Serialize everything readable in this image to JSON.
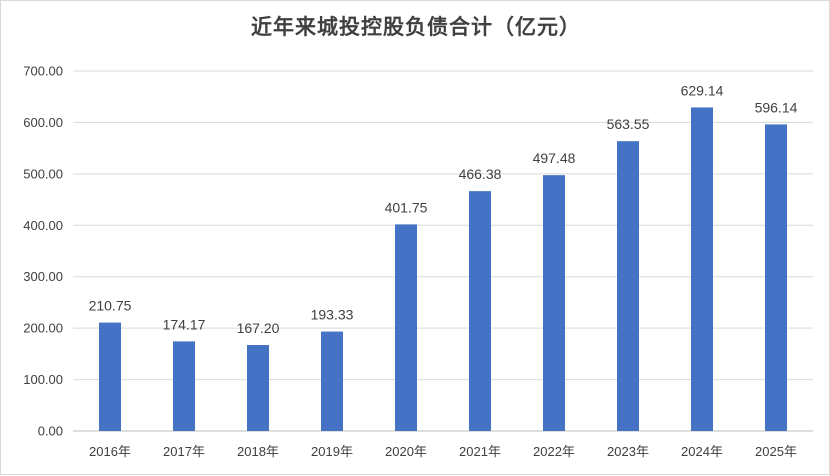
{
  "chart_data": {
    "type": "bar",
    "title": "近年来城投控股负债合计（亿元）",
    "categories": [
      "2016年",
      "2017年",
      "2018年",
      "2019年",
      "2020年",
      "2021年",
      "2022年",
      "2023年",
      "2024年",
      "2025年"
    ],
    "values": [
      210.75,
      174.17,
      167.2,
      193.33,
      401.75,
      466.38,
      497.48,
      563.55,
      629.14,
      596.14
    ],
    "data_labels": [
      "210.75",
      "174.17",
      "167.20",
      "193.33",
      "401.75",
      "466.38",
      "497.48",
      "563.55",
      "629.14",
      "596.14"
    ],
    "yticks": [
      "0.00",
      "100.00",
      "200.00",
      "300.00",
      "400.00",
      "500.00",
      "600.00",
      "700.00"
    ],
    "ylim": [
      0,
      700
    ],
    "grid": true,
    "legend": "none",
    "colors": {
      "bar": "#4472C4",
      "grid": "#d9d9d9",
      "axis": "#bfbfbf",
      "text": "#404040"
    }
  }
}
